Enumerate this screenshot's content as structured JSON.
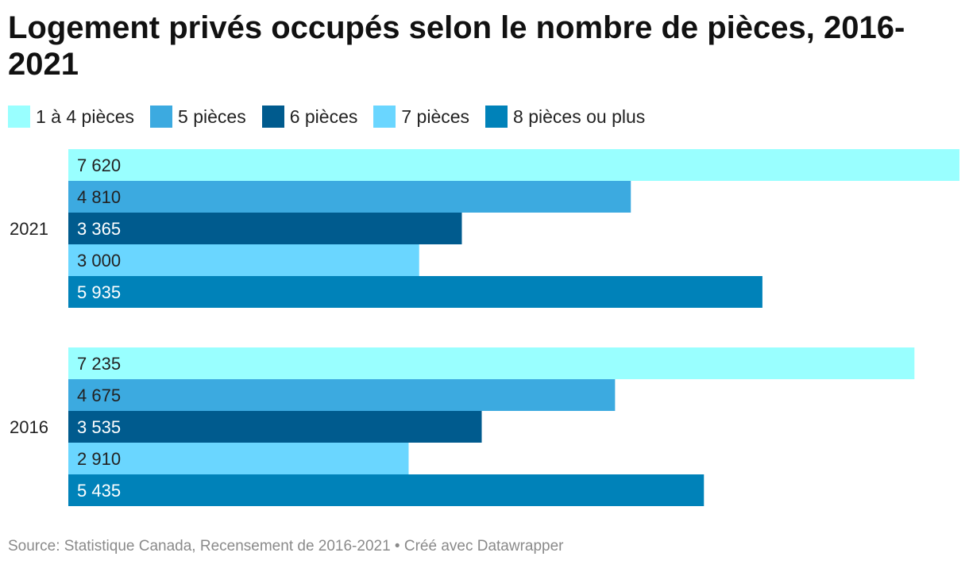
{
  "chart_data": {
    "type": "bar",
    "orientation": "horizontal",
    "title": "Logement privés occupés selon le nombre de pièces, 2016-2021",
    "categories": [
      "2021",
      "2016"
    ],
    "series": [
      {
        "name": "1 à 4 pièces",
        "color": "#99ffff",
        "values": [
          7620,
          7235
        ],
        "labels": [
          "7 620",
          "7 235"
        ]
      },
      {
        "name": "5 pièces",
        "color": "#3caae0",
        "values": [
          4810,
          4675
        ],
        "labels": [
          "4 810",
          "4 675"
        ]
      },
      {
        "name": "6 pièces",
        "color": "#005b8e",
        "values": [
          3365,
          3535
        ],
        "labels": [
          "3 365",
          "3 535"
        ]
      },
      {
        "name": "7 pièces",
        "color": "#6ad6ff",
        "values": [
          3000,
          2910
        ],
        "labels": [
          "3 000",
          "2 910"
        ]
      },
      {
        "name": "8 pièces ou plus",
        "color": "#0082b9",
        "values": [
          5935,
          5435
        ],
        "labels": [
          "5 935",
          "5 435"
        ]
      }
    ],
    "xlim": [
      0,
      7620
    ],
    "grid": false,
    "legend_position": "top"
  },
  "footer": {
    "source": "Source: Statistique Canada, Recensement de 2016-2021 • Créé avec Datawrapper"
  }
}
